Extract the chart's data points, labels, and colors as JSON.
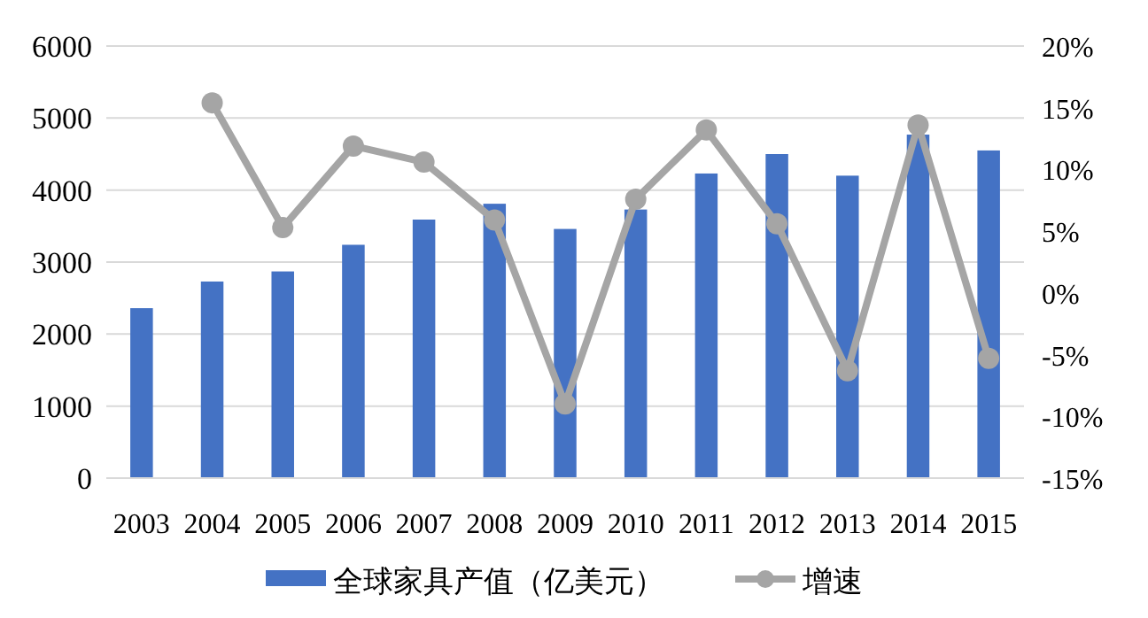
{
  "chart_data": {
    "type": "bar",
    "categories": [
      "2003",
      "2004",
      "2005",
      "2006",
      "2007",
      "2008",
      "2009",
      "2010",
      "2011",
      "2012",
      "2013",
      "2014",
      "2015"
    ],
    "series": [
      {
        "name": "全球家具产值（亿美元）",
        "color": "#4472c4",
        "values": [
          2360,
          2730,
          2870,
          3240,
          3590,
          3810,
          3460,
          3730,
          4230,
          4500,
          4200,
          4770,
          4550
        ]
      },
      {
        "name": "增速",
        "type": "line",
        "axis": "y2",
        "color": "#a5a5a5",
        "marker": "circle",
        "values": [
          null,
          15.4,
          5.3,
          11.9,
          10.6,
          5.9,
          -9.0,
          7.6,
          13.2,
          5.6,
          -6.3,
          13.6,
          -5.3
        ]
      }
    ],
    "ylim": [
      0,
      6000
    ],
    "yticks": [
      0,
      1000,
      2000,
      3000,
      4000,
      5000,
      6000
    ],
    "y2lim": [
      -15,
      20
    ],
    "y2ticks": [
      {
        "value": -15,
        "label": "-15%"
      },
      {
        "value": -10,
        "label": "-10%"
      },
      {
        "value": -5,
        "label": "-5%"
      },
      {
        "value": 0,
        "label": "0%"
      },
      {
        "value": 5,
        "label": "5%"
      },
      {
        "value": 10,
        "label": "10%"
      },
      {
        "value": 15,
        "label": "15%"
      },
      {
        "value": 20,
        "label": "20%"
      }
    ],
    "grid": "y",
    "legend": "bottom"
  }
}
